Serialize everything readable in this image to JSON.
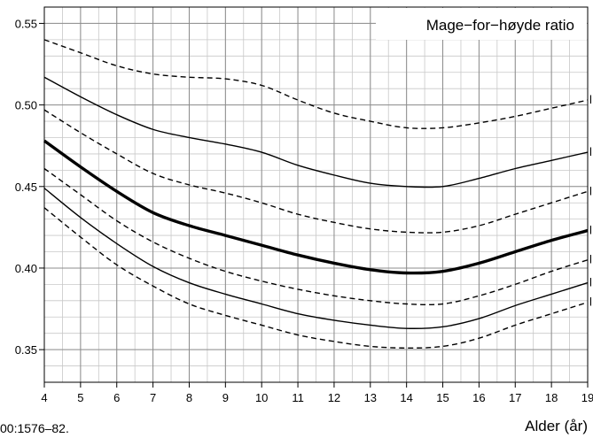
{
  "chart_data": {
    "type": "line",
    "title": "Mage−for−høyde ratio",
    "xlabel": "Alder (år)",
    "ylabel": "",
    "xlim": [
      4,
      19
    ],
    "ylim": [
      0.33,
      0.56
    ],
    "x_ticks": [
      4,
      5,
      6,
      7,
      8,
      9,
      10,
      11,
      12,
      13,
      14,
      15,
      16,
      17,
      18,
      19
    ],
    "y_ticks": [
      0.35,
      0.4,
      0.45,
      0.5,
      0.55
    ],
    "y_tick_labels": [
      "0.35",
      "0.40",
      "0.45",
      "0.50",
      "0.55"
    ],
    "grid": true,
    "x": [
      4,
      5,
      6,
      7,
      8,
      9,
      10,
      11,
      12,
      13,
      14,
      15,
      16,
      17,
      18,
      19
    ],
    "series": [
      {
        "style": "dashed",
        "weight": "thin",
        "values": [
          0.54,
          0.532,
          0.524,
          0.519,
          0.517,
          0.516,
          0.512,
          0.503,
          0.495,
          0.49,
          0.486,
          0.486,
          0.489,
          0.493,
          0.498,
          0.503
        ]
      },
      {
        "style": "solid",
        "weight": "thin",
        "values": [
          0.517,
          0.505,
          0.494,
          0.485,
          0.48,
          0.476,
          0.471,
          0.463,
          0.457,
          0.452,
          0.45,
          0.45,
          0.455,
          0.461,
          0.466,
          0.471
        ]
      },
      {
        "style": "dashed",
        "weight": "thin",
        "values": [
          0.497,
          0.483,
          0.47,
          0.458,
          0.451,
          0.446,
          0.44,
          0.433,
          0.428,
          0.424,
          0.422,
          0.422,
          0.426,
          0.433,
          0.44,
          0.447
        ]
      },
      {
        "style": "solid",
        "weight": "thick",
        "values": [
          0.478,
          0.462,
          0.447,
          0.434,
          0.426,
          0.42,
          0.414,
          0.408,
          0.403,
          0.399,
          0.397,
          0.398,
          0.403,
          0.41,
          0.417,
          0.423
        ]
      },
      {
        "style": "dashed",
        "weight": "thin",
        "values": [
          0.461,
          0.445,
          0.429,
          0.416,
          0.406,
          0.398,
          0.392,
          0.387,
          0.383,
          0.38,
          0.378,
          0.378,
          0.383,
          0.39,
          0.398,
          0.405
        ]
      },
      {
        "style": "solid",
        "weight": "thin",
        "values": [
          0.449,
          0.431,
          0.415,
          0.401,
          0.391,
          0.384,
          0.378,
          0.372,
          0.368,
          0.365,
          0.363,
          0.364,
          0.369,
          0.377,
          0.384,
          0.391
        ]
      },
      {
        "style": "dashed",
        "weight": "thin",
        "values": [
          0.437,
          0.419,
          0.402,
          0.389,
          0.378,
          0.371,
          0.365,
          0.359,
          0.355,
          0.352,
          0.351,
          0.352,
          0.357,
          0.365,
          0.372,
          0.379
        ]
      }
    ],
    "right_labels": [
      "l",
      "l",
      "l",
      "l",
      "l",
      "l",
      "l"
    ],
    "citation": "00:1576–82.",
    "legend": "top-right"
  }
}
